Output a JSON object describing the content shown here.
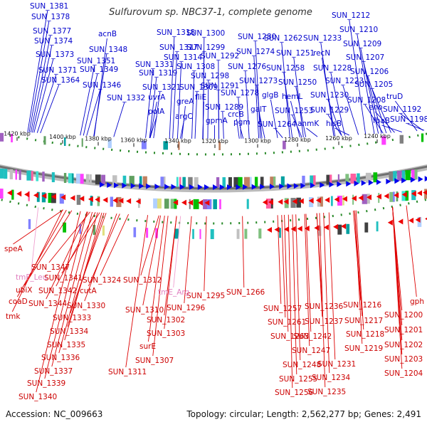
{
  "title": "Sulfurovum sp. NBC37-1, complete genome",
  "accession": "Accession: NC_009663",
  "topology": "Topology: circular; Length: 2,562,277 bp; Genes: 2,491",
  "colors": {
    "forward": "#0000cc",
    "reverse": "#dd0000",
    "rna": "#f0a0d0"
  },
  "ticks": [
    {
      "label": "1420 kbp"
    },
    {
      "label": "1400 kbp"
    },
    {
      "label": "1380 kbp"
    },
    {
      "label": "1360 kbp"
    },
    {
      "label": "1340 kbp"
    },
    {
      "label": "1320 kbp"
    },
    {
      "label": "1300 kbp"
    },
    {
      "label": "1280 kbp"
    },
    {
      "label": "1260 kbp"
    },
    {
      "label": "1240 kbp"
    }
  ],
  "forward_genes": [
    "SUN_1381",
    "SUN_1378",
    "SUN_1377",
    "SUN_1374",
    "SUN_1373",
    "SUN_1371",
    "SUN_1364",
    "acnB",
    "SUN_1348",
    "SUN_1351",
    "SUN_1349",
    "SUN_1346",
    "SUN_1318",
    "SUN_1317",
    "SUN_1331",
    "SUN_1314",
    "SUN_1319",
    "SUN_1321",
    "SUN_1332",
    "uvrA",
    "polA",
    "SUN_1308",
    "greA",
    "SUN_1309",
    "argC",
    "SUN_1300",
    "SUN_1299",
    "SUN_1292",
    "SUN_1298",
    "fliE",
    "SUN_1291",
    "SUN_1289",
    "gpmA",
    "SUN_1280",
    "SUN_1274",
    "SUN_1276",
    "SUN_1273",
    "SUN_1278",
    "crcB",
    "pgm",
    "galT",
    "SUN_1262",
    "SUN_1251",
    "SUN_1258",
    "SUN_1250",
    "hemL",
    "glgB",
    "SUN_1253",
    "SUN_1264",
    "anmK",
    "SUN_1233",
    "recN",
    "SUN_1228",
    "SUN_1223",
    "SUN_1230",
    "SUN_1229",
    "hisB",
    "SUN_1212",
    "SUN_1210",
    "SUN_1209",
    "SUN_1207",
    "SUN_1206",
    "SUN_1205",
    "SUN_1208",
    "truD",
    "eno",
    "SUN_1192",
    "fbaB",
    "SUN_1198"
  ],
  "reverse_genes": [
    "speA",
    "SUN_1347",
    "ubiX",
    "SUN_1341",
    "coaD",
    "SUN_1342",
    "SUN_1344",
    "tmk",
    "cutA",
    "SUN_1324",
    "SUN_1330",
    "SUN_1333",
    "SUN_1334",
    "SUN_1335",
    "SUN_1336",
    "SUN_1337",
    "SUN_1339",
    "SUN_1340",
    "SUN_1312",
    "SUN_1310",
    "SUN_1296",
    "SUN_1302",
    "SUN_1303",
    "surE",
    "SUN_1307",
    "SUN_1311",
    "SUN_1295",
    "SUN_1266",
    "SUN_1257",
    "SUN_1236",
    "SUN_1261",
    "SUN_1237",
    "SUN_1263",
    "SUN_1242",
    "SUN_1247",
    "SUN_1231",
    "SUN_1248",
    "SUN_1234",
    "SUN_1255",
    "SUN_1235",
    "SUN_1256",
    "SUN_1216",
    "SUN_1217",
    "SUN_1218",
    "SUN_1219",
    "gph",
    "SUN_1200",
    "SUN_1201",
    "SUN_1202",
    "SUN_1203",
    "SUN_1204"
  ],
  "rna_genes": [
    "tmF_Leu",
    "tmE_Arg"
  ]
}
